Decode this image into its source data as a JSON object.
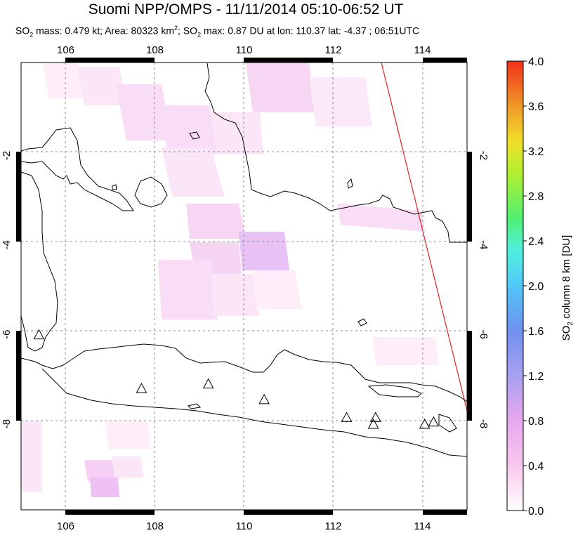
{
  "header": {
    "title": "Suomi NPP/OMPS - 11/11/2014 05:10-06:52 UT",
    "subtitle": {
      "so2_mass_label": "SO",
      "so2_mass_text": " mass: 0.479 kt; Area: 80323 km",
      "area_sup": "2",
      "so2_max_prefix": "; SO",
      "so2_max_text": " max: 0.87 DU at lon: 110.37 lat: -4.37 ; 06:51UTC",
      "sub2": "2"
    }
  },
  "map": {
    "lon_ticks": [
      "106",
      "108",
      "110",
      "112",
      "114"
    ],
    "lat_ticks": [
      "-2",
      "-4",
      "-6",
      "-8"
    ],
    "lon_values": [
      106,
      108,
      110,
      112,
      114
    ],
    "lat_values": [
      -2,
      -4,
      -6,
      -8
    ],
    "lon_range": [
      105,
      115
    ],
    "lat_range": [
      0,
      -10
    ],
    "volcano_icon": "triangle-icon",
    "volcanoes": [
      {
        "lon": 105.4,
        "lat": -6.1
      },
      {
        "lon": 107.7,
        "lat": -7.3
      },
      {
        "lon": 109.2,
        "lat": -7.2
      },
      {
        "lon": 110.45,
        "lat": -7.55
      },
      {
        "lon": 112.3,
        "lat": -7.95
      },
      {
        "lon": 112.95,
        "lat": -7.95
      },
      {
        "lon": 112.9,
        "lat": -8.1
      },
      {
        "lon": 114.05,
        "lat": -8.1
      },
      {
        "lon": 114.25,
        "lat": -8.05
      }
    ],
    "swath_edge_color": "#e02020",
    "land_outline_color": "#000000"
  },
  "colorbar": {
    "title": "SO",
    "title_sub": "2",
    "title_rest": " column 8 km [DU]",
    "ticks": [
      "4.0",
      "3.6",
      "3.2",
      "2.8",
      "2.4",
      "2.0",
      "1.6",
      "1.2",
      "0.8",
      "0.4",
      "0.0"
    ],
    "tick_values": [
      4.0,
      3.6,
      3.2,
      2.8,
      2.4,
      2.0,
      1.6,
      1.2,
      0.8,
      0.4,
      0.0
    ],
    "colors": [
      "#ffffff",
      "#ffd9f2",
      "#f2b8f2",
      "#c8a0f0",
      "#8a8ae0",
      "#5ab4f0",
      "#5af0f0",
      "#5af05a",
      "#c8f028",
      "#f0e028",
      "#f0a028",
      "#f05020",
      "#e82010"
    ]
  }
}
